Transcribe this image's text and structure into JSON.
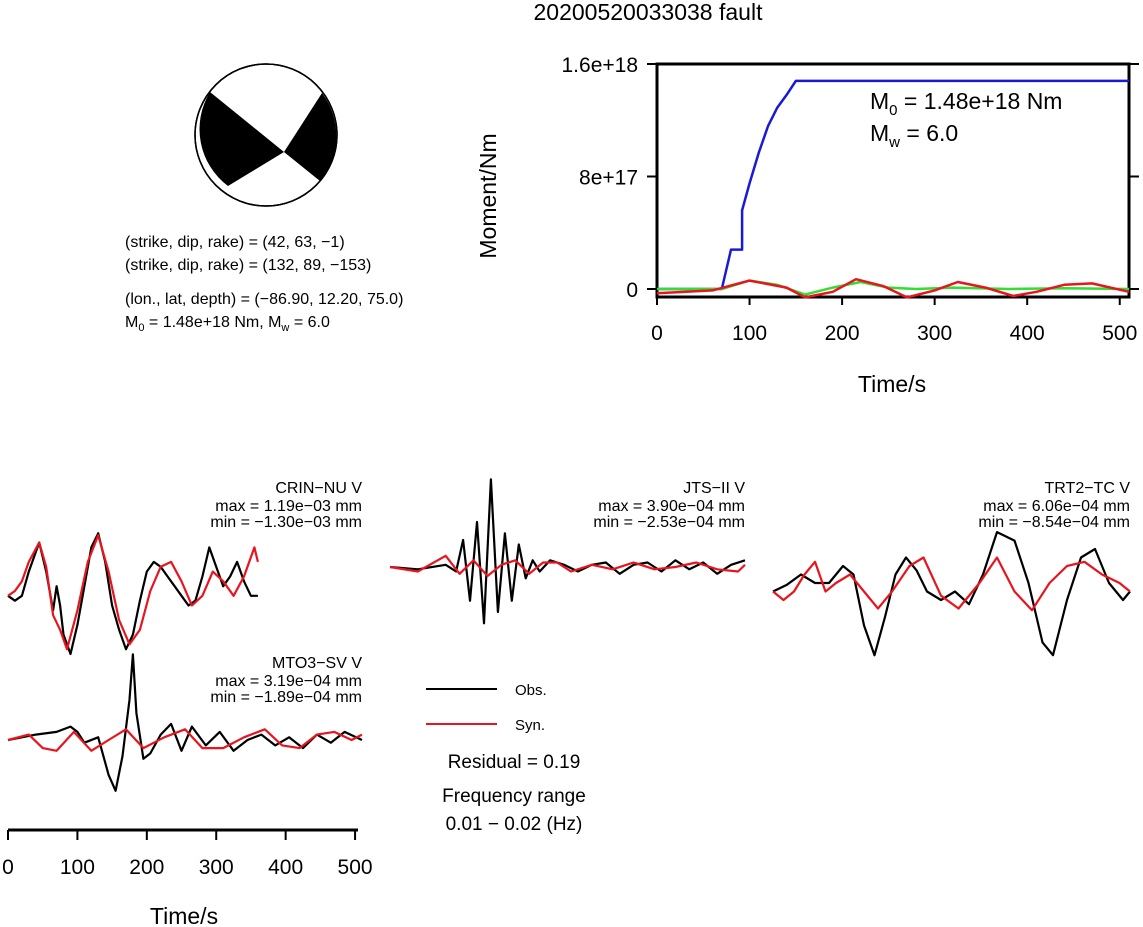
{
  "title": "20200520033038 fault",
  "mechanism": {
    "line1": "(strike, dip, rake) = (42, 63, −1)",
    "line2": "(strike, dip, rake) = (132, 89, −153)",
    "line3": "(lon., lat, depth) = (−86.90, 12.20, 75.0)",
    "m0_prefix": "M",
    "m0_sub": "0",
    "m0_value": " = 1.48e+18 Nm, M",
    "mw_sub": "w",
    "mw_value": " = 6.0"
  },
  "moment_annotation": {
    "m0_prefix": "M",
    "m0_sub": "0",
    "m0_value": " = 1.48e+18 Nm",
    "mw_prefix": "M",
    "mw_sub": "w",
    "mw_value": " = 6.0"
  },
  "residual": "Residual = 0.19",
  "frequency_label": "Frequency range",
  "frequency_range": "0.01 − 0.02 (Hz)",
  "legend": {
    "obs": "Obs.",
    "syn": "Syn."
  },
  "colors": {
    "obs": "#000000",
    "syn": "#e8141e",
    "moment": "#1a1ad6",
    "green": "#33dd33"
  },
  "chart_data": [
    {
      "type": "line",
      "xlabel": "Time/s",
      "ylabel": "Moment/Nm",
      "xlim": [
        0,
        510
      ],
      "ylim": [
        -6e+16,
        1.65e+18
      ],
      "x_ticks": [
        0,
        100,
        200,
        300,
        400,
        500
      ],
      "x_tick_labels": [
        "0",
        "100",
        "200",
        "300",
        "400",
        "500"
      ],
      "y_ticks": [
        0,
        8e+17,
        1.6e+18
      ],
      "y_tick_labels": [
        "0",
        "8e+17",
        "1.6e+18"
      ],
      "series": [
        {
          "color": "#1a1ad6",
          "x": [
            0,
            70,
            80,
            80,
            92,
            92,
            100,
            110,
            120,
            130,
            140,
            150,
            510
          ],
          "y": [
            0,
            0,
            2.8e+17,
            2.8e+17,
            2.8e+17,
            5.6e+17,
            7.5e+17,
            9.7e+17,
            1.16e+18,
            1.29e+18,
            1.38e+18,
            1.48e+18,
            1.48e+18
          ]
        },
        {
          "color": "#33dd33",
          "x": [
            0,
            70,
            100,
            130,
            160,
            190,
            220,
            250,
            280,
            320,
            380,
            440,
            510
          ],
          "y": [
            0,
            0,
            6e+16,
            3e+16,
            -4e+16,
            1e+16,
            5e+16,
            1e+16,
            0,
            1e+16,
            0,
            5000000000000000.0,
            0
          ]
        },
        {
          "color": "#e8141e",
          "x": [
            0,
            60,
            100,
            140,
            160,
            190,
            215,
            245,
            270,
            300,
            325,
            355,
            385,
            410,
            440,
            470,
            510
          ],
          "y": [
            -3e+16,
            -1e+16,
            6e+16,
            1e+16,
            -6e+16,
            -2e+16,
            7e+16,
            2e+16,
            -6e+16,
            -1e+16,
            5e+16,
            1e+16,
            -5e+16,
            -2e+16,
            3e+16,
            4e+16,
            -2e+16
          ]
        }
      ]
    },
    {
      "type": "line",
      "station": "CRIN−NU V",
      "max": "max = 1.19e−03 mm",
      "min": "min = −1.30e−03 mm",
      "xlim": [
        0,
        510
      ],
      "ylim": [
        -0.0013,
        0.0013
      ],
      "series": [
        {
          "name": "Obs.",
          "color": "#000000",
          "x": [
            0,
            10,
            20,
            30,
            45,
            55,
            65,
            70,
            75,
            80,
            90,
            100,
            110,
            120,
            130,
            140,
            150,
            160,
            170,
            180,
            190,
            200,
            210,
            220,
            230,
            240,
            250,
            260,
            270,
            280,
            290,
            300,
            310,
            320,
            330,
            340,
            350,
            360
          ],
          "y": [
            -0.0001,
            -0.0002,
            -0.0001,
            0.0004,
            0.001,
            0.0004,
            -0.0004,
            0.0001,
            -0.0003,
            -0.0009,
            -0.0013,
            -0.0007,
            0.0001,
            0.0009,
            0.00119,
            0.0006,
            -0.0003,
            -0.0008,
            -0.0012,
            -0.0009,
            -0.0002,
            0.0004,
            0.0006,
            0.0005,
            0.0003,
            0.0001,
            -0.0001,
            -0.0003,
            -0.0002,
            0.0003,
            0.0009,
            0.0005,
            0.0001,
            0.0003,
            0.0006,
            0.0002,
            -0.0001,
            -0.0001
          ]
        },
        {
          "name": "Syn.",
          "color": "#e8141e",
          "x": [
            0,
            10,
            20,
            30,
            45,
            55,
            65,
            75,
            85,
            100,
            115,
            130,
            145,
            160,
            175,
            190,
            205,
            220,
            235,
            250,
            265,
            280,
            295,
            310,
            325,
            340,
            355,
            360
          ],
          "y": [
            -0.0001,
            0,
            0.0002,
            0.0006,
            0.001,
            0.0005,
            -0.0005,
            -0.0008,
            -0.0012,
            -0.0004,
            0.0006,
            0.00115,
            0.0004,
            -0.0006,
            -0.0011,
            -0.0008,
            0,
            0.0005,
            0.0006,
            0.0002,
            -0.0003,
            -0.0001,
            0.0004,
            0.0002,
            -0.0001,
            0.0003,
            0.0009,
            0.0006
          ]
        }
      ]
    },
    {
      "type": "line",
      "station": "JTS−II V",
      "max": "max = 3.90e−04 mm",
      "min": "min = −2.53e−04 mm",
      "xlim": [
        0,
        510
      ],
      "ylim": [
        -0.0004,
        0.0004
      ],
      "series": [
        {
          "name": "Obs.",
          "color": "#000000",
          "x": [
            0,
            40,
            80,
            95,
            105,
            115,
            125,
            135,
            145,
            155,
            165,
            175,
            185,
            195,
            205,
            215,
            230,
            250,
            270,
            290,
            310,
            330,
            350,
            370,
            390,
            410,
            430,
            450,
            470,
            490,
            510
          ],
          "y": [
            0,
            -1e-05,
            1e-05,
            -2e-05,
            0.00012,
            -0.00015,
            0.0002,
            -0.00025,
            0.00039,
            -0.0002,
            0.00015,
            -0.00015,
            0.0001,
            -5e-05,
            3e-05,
            -2e-05,
            3e-05,
            1e-05,
            -2e-05,
            1e-05,
            2e-05,
            -3e-05,
            1e-05,
            2e-05,
            -2e-05,
            3e-05,
            -1e-05,
            2e-05,
            -3e-05,
            1e-05,
            3e-05
          ]
        },
        {
          "name": "Syn.",
          "color": "#e8141e",
          "x": [
            0,
            40,
            80,
            100,
            120,
            140,
            160,
            180,
            200,
            220,
            240,
            260,
            290,
            320,
            350,
            380,
            410,
            440,
            470,
            500,
            510
          ],
          "y": [
            0,
            -2e-05,
            5e-05,
            -3e-05,
            3e-05,
            -4e-05,
            1e-05,
            3e-05,
            -3e-05,
            2e-05,
            2e-05,
            -2e-05,
            1e-05,
            -1e-05,
            2e-05,
            -1e-05,
            0,
            2e-05,
            -1e-05,
            -2e-05,
            1e-05
          ]
        }
      ]
    },
    {
      "type": "line",
      "station": "TRT2−TC V",
      "max": "max = 6.06e−04 mm",
      "min": "min = −8.54e−04 mm",
      "xlim": [
        0,
        510
      ],
      "ylim": [
        -0.00086,
        0.00061
      ],
      "series": [
        {
          "name": "Obs.",
          "color": "#000000",
          "x": [
            0,
            20,
            40,
            60,
            80,
            100,
            115,
            130,
            145,
            160,
            175,
            190,
            205,
            220,
            240,
            260,
            280,
            300,
            320,
            345,
            365,
            385,
            400,
            420,
            440,
            460,
            480,
            500,
            510
          ],
          "y": [
            -0.0001,
            -2e-05,
            0.0001,
            0,
            0,
            0.0002,
            0.0001,
            -0.0005,
            -0.00085,
            -0.0004,
            0.0001,
            0.0003,
            0.00015,
            -0.0001,
            -0.0002,
            -0.0001,
            -0.00025,
            0.0001,
            0.0006,
            0.0005,
            0,
            -0.0007,
            -0.00085,
            -0.0002,
            0.0003,
            0.0004,
            0,
            -0.0002,
            -0.0001
          ]
        },
        {
          "name": "Syn.",
          "color": "#e8141e",
          "x": [
            0,
            15,
            30,
            45,
            60,
            75,
            90,
            110,
            130,
            150,
            170,
            195,
            215,
            240,
            265,
            295,
            320,
            345,
            370,
            395,
            420,
            445,
            470,
            495,
            510
          ],
          "y": [
            -0.0001,
            -0.0002,
            -0.0001,
            0.0001,
            0.00025,
            -0.0001,
            0,
            0.0001,
            -0.0001,
            -0.0003,
            -0.0001,
            0.0002,
            0.0003,
            -0.00015,
            -0.0003,
            0,
            0.0003,
            -0.0001,
            -0.00032,
            0,
            0.0002,
            0.00025,
            0.0001,
            0,
            -0.0001
          ]
        }
      ]
    },
    {
      "type": "line",
      "station": "MTO3−SV V",
      "max": "max = 3.19e−04 mm",
      "min": "min = −1.89e−04 mm",
      "xlabel": "Time/s",
      "xlim": [
        0,
        510
      ],
      "ylim": [
        -0.0002,
        0.00032
      ],
      "x_ticks": [
        0,
        100,
        200,
        300,
        400,
        500
      ],
      "x_tick_labels": [
        "0",
        "100",
        "200",
        "300",
        "400",
        "500"
      ],
      "series": [
        {
          "name": "Obs.",
          "color": "#000000",
          "x": [
            0,
            40,
            70,
            90,
            100,
            110,
            130,
            145,
            155,
            165,
            175,
            180,
            185,
            195,
            205,
            220,
            235,
            250,
            265,
            285,
            305,
            325,
            345,
            365,
            385,
            405,
            425,
            445,
            465,
            485,
            510
          ],
          "y": [
            0,
            2e-05,
            3e-05,
            5e-05,
            3e-05,
            -1e-05,
            1e-05,
            -0.00013,
            -0.000189,
            -6e-05,
            0.00015,
            0.000319,
            0.0001,
            -7e-05,
            -5e-05,
            2e-05,
            6e-05,
            -4e-05,
            5e-05,
            -2e-05,
            3e-05,
            -4e-05,
            0,
            2e-05,
            -2e-05,
            1e-05,
            -3e-05,
            2e-05,
            -1e-05,
            3e-05,
            0
          ]
        },
        {
          "name": "Syn.",
          "color": "#e8141e",
          "x": [
            0,
            30,
            50,
            70,
            95,
            120,
            145,
            170,
            195,
            225,
            255,
            280,
            310,
            340,
            370,
            395,
            420,
            445,
            470,
            495,
            510
          ],
          "y": [
            0,
            2e-05,
            -3e-05,
            -4e-05,
            3e-05,
            -4e-05,
            0,
            4e-05,
            -3e-05,
            1e-05,
            4e-05,
            -3e-05,
            -3e-05,
            1e-05,
            4e-05,
            -2e-05,
            -3e-05,
            2e-05,
            3e-05,
            0,
            2e-05
          ]
        }
      ]
    }
  ]
}
